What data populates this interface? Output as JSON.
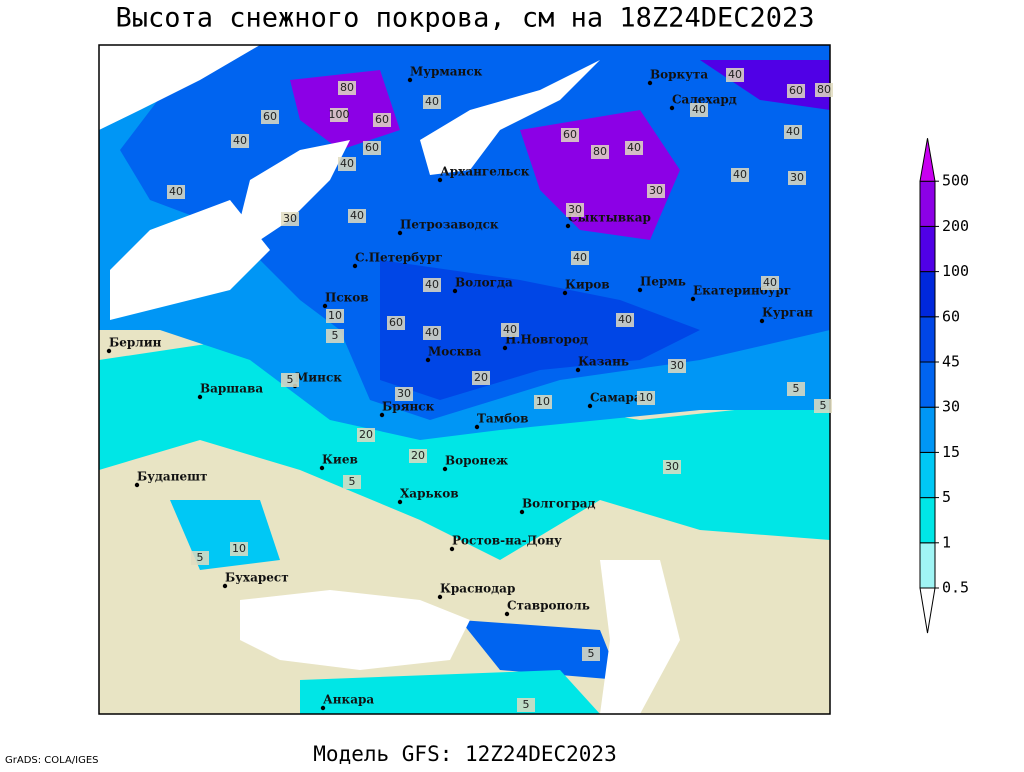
{
  "header": {
    "title": "Высота снежного покрова, см на 18Z24DEC2023"
  },
  "footer": {
    "model": "Модель GFS: 12Z24DEC2023",
    "credit": "GrADS: COLA/IGES"
  },
  "map": {
    "cities": [
      "Мурманск",
      "Воркута",
      "Салехард",
      "Архангельск",
      "Сыктывкар",
      "Петрозаводск",
      "С.Петербург",
      "Вологда",
      "Киров",
      "Пермь",
      "Екатеринбург",
      "Курган",
      "Псков",
      "Н.Новгород",
      "Казань",
      "Москва",
      "Берлин",
      "Минск",
      "Варшава",
      "Брянск",
      "Тамбов",
      "Самара",
      "Киев",
      "Воронеж",
      "Харьков",
      "Волгоград",
      "Будапешт",
      "Ростов-на-Дону",
      "Бухарест",
      "Краснодар",
      "Ставрополь",
      "Анкара"
    ],
    "contour_labels": [
      "80",
      "40",
      "60",
      "100",
      "60",
      "40",
      "60",
      "40",
      "40",
      "30",
      "40",
      "60",
      "80",
      "40",
      "40",
      "40",
      "60",
      "40",
      "40",
      "80",
      "30",
      "40",
      "30",
      "30",
      "40",
      "40",
      "40",
      "60",
      "40",
      "30",
      "10",
      "5",
      "40",
      "5",
      "20",
      "30",
      "10",
      "20",
      "10",
      "30",
      "5",
      "5",
      "10",
      "5",
      "5",
      "20",
      "5",
      "5"
    ]
  },
  "legend": {
    "levels": [
      0.5,
      1,
      5,
      15,
      30,
      45,
      60,
      100,
      200,
      500
    ],
    "colors": [
      "#ffffff",
      "#a0f5f5",
      "#00e6e6",
      "#00c8f5",
      "#0096f5",
      "#0064f0",
      "#0046e6",
      "#0028dc",
      "#5000e6",
      "#8c00e6",
      "#c800f0"
    ]
  }
}
